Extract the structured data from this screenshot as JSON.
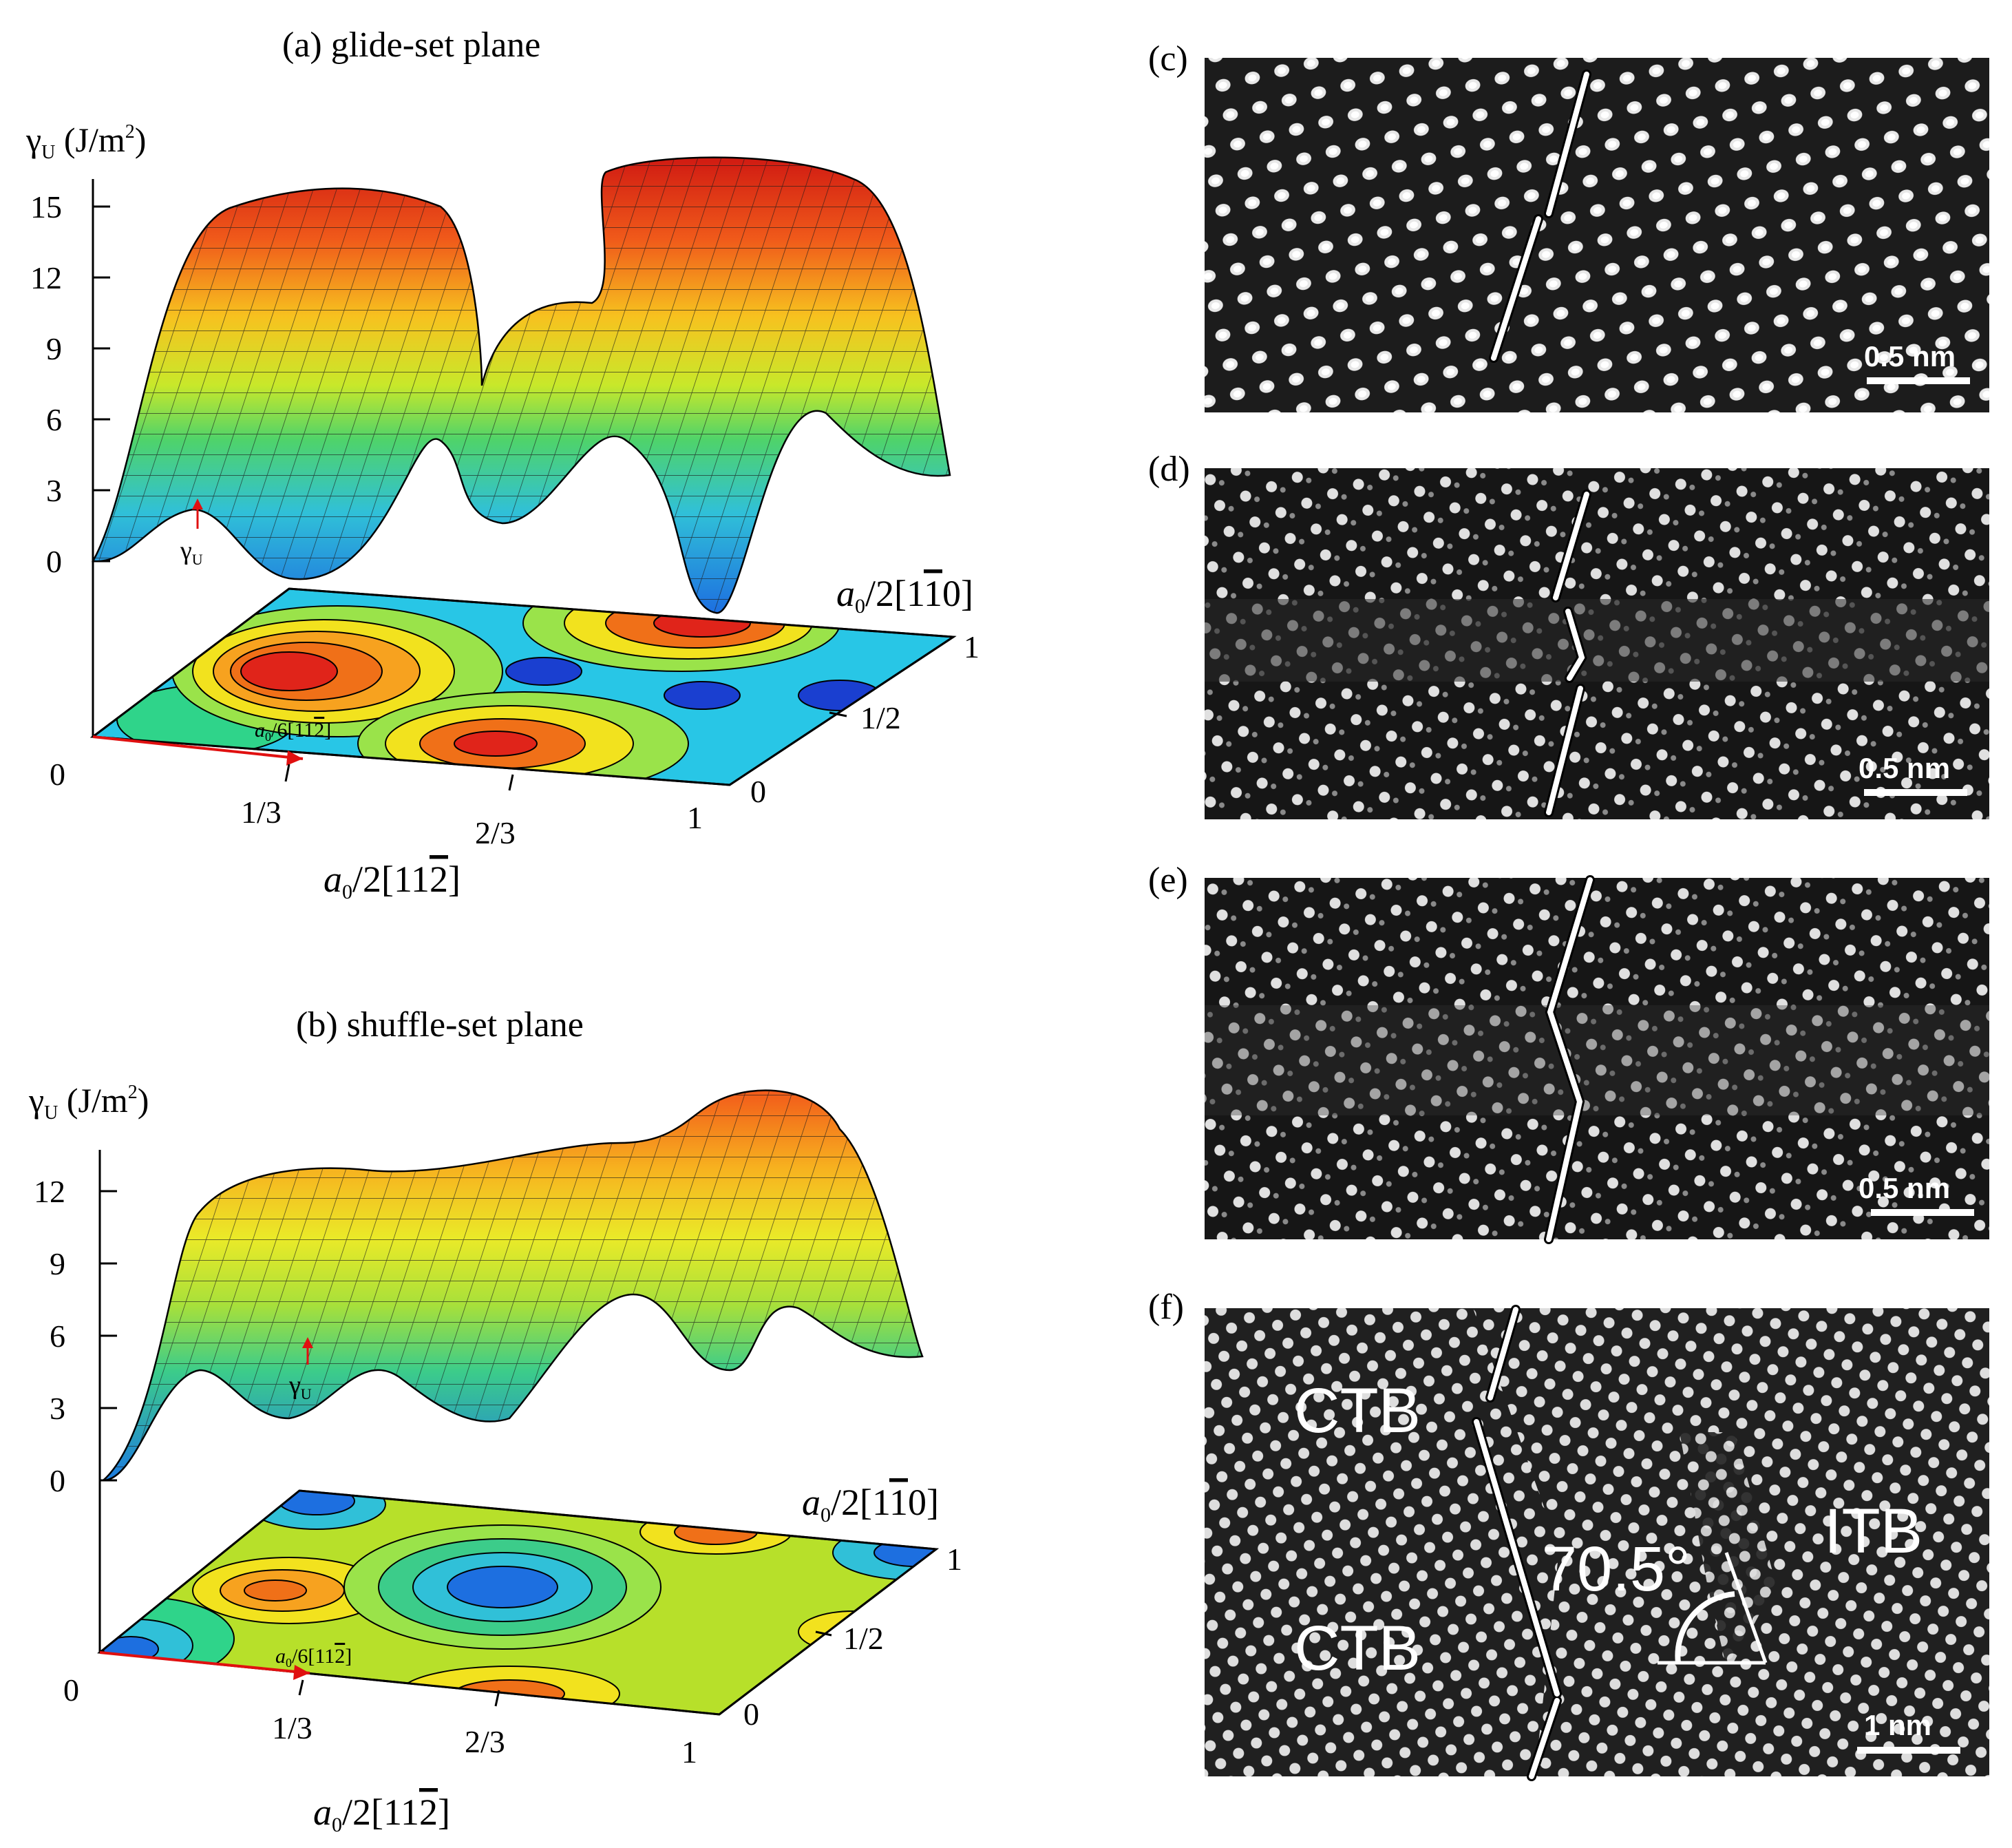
{
  "panel_a": {
    "title": "(a) glide-set plane",
    "ylabel_sym": "γ",
    "ylabel_sub": "U",
    "ylabel_unit": " (J/m",
    "ylabel_sup": "2",
    "ylabel_close": ")",
    "yticks": [
      "15",
      "12",
      "9",
      "6",
      "3",
      "0"
    ],
    "gamma_sym": "γ",
    "gamma_sub": "U",
    "axis_y_main": "a",
    "axis_y_sub": "0",
    "axis_y_rest": "/2[1",
    "axis_y_bar": "1",
    "axis_y_tail": "0]",
    "axis_y_ticks": [
      "1",
      "1/2",
      "0"
    ],
    "axis_x_main": "a",
    "axis_x_sub": "0",
    "axis_x_rest": "/2[11",
    "axis_x_bar": "2",
    "axis_x_tail": "]",
    "axis_x_ticks": [
      "0",
      "1/3",
      "2/3",
      "1"
    ],
    "arrow_label_main": "a",
    "arrow_label_sub": "0",
    "arrow_label_rest": "/6[11",
    "arrow_label_bar": "2",
    "arrow_label_tail": "]"
  },
  "panel_b": {
    "title": "(b) shuffle-set plane",
    "ylabel_sym": "γ",
    "ylabel_sub": "U",
    "ylabel_unit": " (J/m",
    "ylabel_sup": "2",
    "ylabel_close": ")",
    "yticks": [
      "12",
      "9",
      "6",
      "3",
      "0"
    ],
    "gamma_sym": "γ",
    "gamma_sub": "U",
    "axis_y_main": "a",
    "axis_y_sub": "0",
    "axis_y_rest": "/2[1",
    "axis_y_bar": "1",
    "axis_y_tail": "0]",
    "axis_y_ticks": [
      "1",
      "1/2",
      "0"
    ],
    "axis_x_main": "a",
    "axis_x_sub": "0",
    "axis_x_rest": "/2[11",
    "axis_x_bar": "2",
    "axis_x_tail": "]",
    "axis_x_ticks": [
      "0",
      "1/3",
      "2/3",
      "1"
    ],
    "arrow_label_main": "a",
    "arrow_label_sub": "0",
    "arrow_label_rest": "/6[11",
    "arrow_label_bar": "2",
    "arrow_label_tail": "]"
  },
  "micrographs": {
    "c": {
      "label": "(c)",
      "scale": "0.5 nm"
    },
    "d": {
      "label": "(d)",
      "scale": "0.5 nm"
    },
    "e": {
      "label": "(e)",
      "scale": "0.5 nm"
    },
    "f": {
      "label": "(f)",
      "scale": "1 nm",
      "ctb_top": "CTB",
      "ctb_bottom": "CTB",
      "itb": "ITB",
      "angle": "70.5°"
    }
  },
  "colors": {
    "high": "#e0241a",
    "mid": "#f2e21e",
    "green": "#5fd15a",
    "low": "#1f8fe0",
    "deep": "#1a3fd0"
  }
}
